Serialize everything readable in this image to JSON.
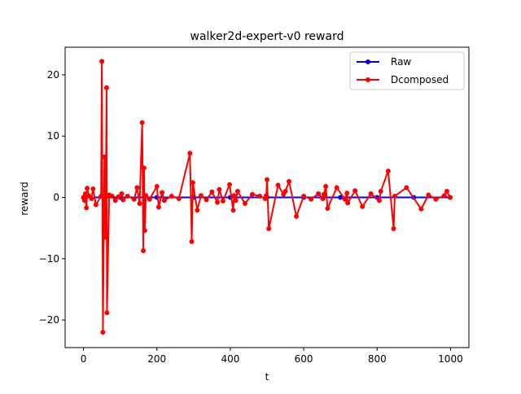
{
  "chart_data": {
    "type": "line",
    "title": "walker2d-expert-v0 reward",
    "xlabel": "t",
    "ylabel": "reward",
    "xlim": [
      -50,
      1050
    ],
    "ylim": [
      -24.5,
      24.5
    ],
    "xticks": [
      0,
      200,
      400,
      600,
      800,
      1000
    ],
    "xtick_labels": [
      "0",
      "200",
      "400",
      "600",
      "800",
      "1000"
    ],
    "yticks": [
      -20,
      -10,
      0,
      10,
      20
    ],
    "ytick_labels": [
      "−20",
      "−10",
      "0",
      "10",
      "20"
    ],
    "grid": false,
    "legend_position": "upper right",
    "legend": [
      "Raw",
      "Dcomposed"
    ],
    "series": [
      {
        "name": "Raw",
        "color": "#0000ff",
        "marker": "circle",
        "x": [
          0,
          100,
          200,
          300,
          400,
          500,
          600,
          700,
          800,
          900,
          999
        ],
        "values": [
          0,
          0,
          0,
          0,
          0,
          0,
          0,
          0,
          0,
          0,
          0
        ]
      },
      {
        "name": "Dcomposed",
        "color": "#ff0000",
        "marker": "circle",
        "x": [
          0,
          3,
          5,
          8,
          10,
          14,
          22,
          26,
          34,
          48,
          50,
          53,
          57,
          60,
          63,
          64,
          70,
          78,
          87,
          95,
          104,
          108,
          120,
          138,
          146,
          153,
          160,
          163,
          165,
          167,
          170,
          180,
          200,
          205,
          214,
          220,
          240,
          260,
          290,
          295,
          298,
          310,
          320,
          335,
          350,
          365,
          370,
          380,
          398,
          408,
          410,
          415,
          420,
          440,
          460,
          480,
          495,
          498,
          500,
          505,
          530,
          545,
          550,
          560,
          580,
          600,
          620,
          640,
          652,
          655,
          660,
          665,
          690,
          712,
          718,
          720,
          740,
          760,
          783,
          806,
          810,
          830,
          845,
          848,
          880,
          920,
          940,
          960,
          983,
          990,
          999
        ],
        "values": [
          0,
          -0.5,
          0.6,
          -1.7,
          1.5,
          0.3,
          -0.2,
          1.4,
          -1.2,
          0.2,
          22.2,
          -22.0,
          6.6,
          -6.5,
          17.9,
          -18.8,
          0.4,
          0.2,
          -0.5,
          0.1,
          0.6,
          -0.4,
          0.2,
          -0.3,
          1.6,
          -1.0,
          12.2,
          -8.7,
          4.8,
          -5.4,
          0.3,
          -0.3,
          1.8,
          -1.6,
          0.8,
          -0.5,
          0.2,
          -0.2,
          7.2,
          -7.2,
          2.4,
          -2.1,
          0.3,
          -0.4,
          0.9,
          -0.8,
          1.3,
          -0.6,
          2.1,
          -2.1,
          0.3,
          -0.5,
          1.0,
          -1.0,
          0.5,
          0.2,
          -0.2,
          0.3,
          2.9,
          -5.1,
          2.0,
          0.5,
          1.0,
          2.6,
          -3.1,
          0.2,
          -0.3,
          0.6,
          -0.2,
          0.5,
          1.8,
          -1.8,
          1.6,
          -0.3,
          0.7,
          -0.9,
          1.1,
          -1.5,
          0.6,
          -0.5,
          1.0,
          4.3,
          -5.1,
          0.2,
          1.6,
          -1.9,
          0.4,
          -0.3,
          0.3,
          1.0,
          0
        ]
      }
    ]
  }
}
